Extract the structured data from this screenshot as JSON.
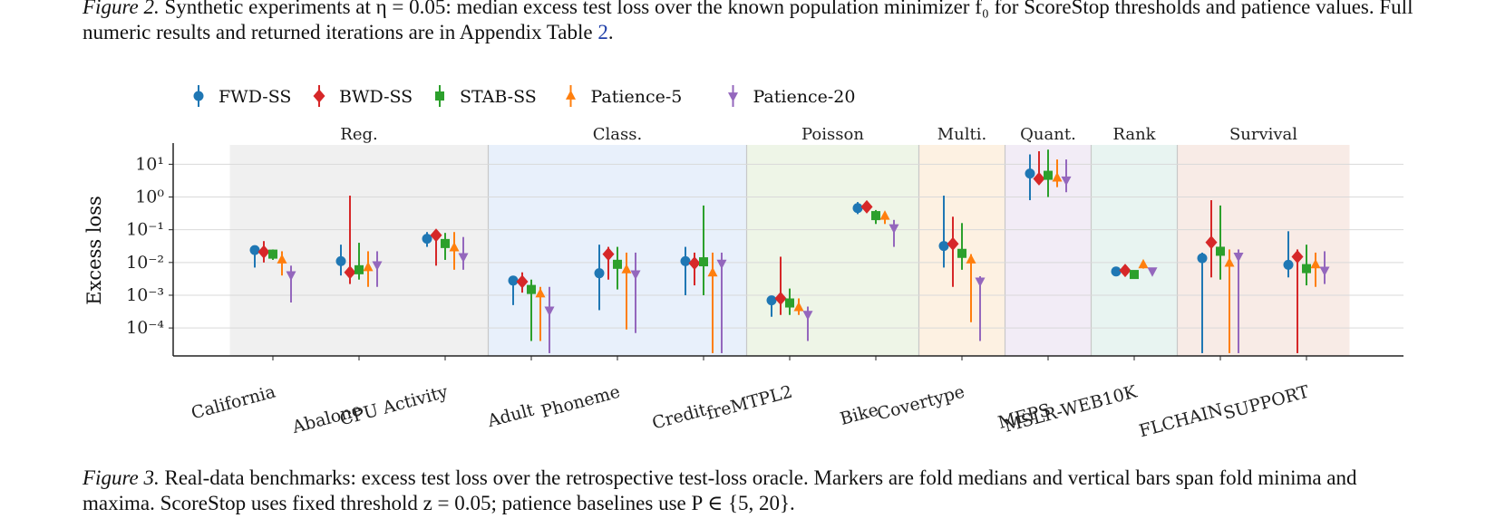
{
  "caption_top": {
    "label": "Figure 2.",
    "text": "Synthetic experiments at η = 0.05: median excess test loss over the known population minimizer f₀ for ScoreStop thresholds and patience values. Full numeric results and returned iterations are in Appendix Table",
    "ref": "2",
    "end": "."
  },
  "caption_bottom": {
    "label": "Figure 3.",
    "text": "Real-data benchmarks: excess test loss over the retrospective test-loss oracle. Markers are fold medians and vertical bars span fold minima and maxima. ScoreStop uses fixed threshold z = 0.05; patience baselines use P ∈ {5, 20}."
  },
  "chart_data": {
    "type": "scatter",
    "ylabel": "Excess loss",
    "yscale": "log",
    "ylim": [
      4e-05,
      40
    ],
    "yticks": [
      {
        "value": 10,
        "label": "10¹"
      },
      {
        "value": 1,
        "label": "10⁰"
      },
      {
        "value": 0.1,
        "label": "10⁻¹"
      },
      {
        "value": 0.01,
        "label": "10⁻²"
      },
      {
        "value": 0.001,
        "label": "10⁻³"
      },
      {
        "value": 0.0001,
        "label": "10⁻⁴"
      }
    ],
    "grid": true,
    "legend_position": "top",
    "groups": [
      {
        "name": "Reg.",
        "start": 0,
        "end": 2,
        "color": "#f0f0f0"
      },
      {
        "name": "Class.",
        "start": 3,
        "end": 5,
        "color": "#e8f0fb"
      },
      {
        "name": "Poisson",
        "start": 6,
        "end": 7,
        "color": "#eef5e7"
      },
      {
        "name": "Multi.",
        "start": 8,
        "end": 8,
        "color": "#fdf1e2"
      },
      {
        "name": "Quant.",
        "start": 9,
        "end": 9,
        "color": "#f2ecf6"
      },
      {
        "name": "Rank",
        "start": 10,
        "end": 10,
        "color": "#e8f4f1"
      },
      {
        "name": "Survival",
        "start": 11,
        "end": 12,
        "color": "#f8ebe6"
      }
    ],
    "categories": [
      "California",
      "Abalone",
      "CPU Activity",
      "Adult",
      "Phoneme",
      "Credit",
      "freMTPL2",
      "Bike",
      "Covertype",
      "MEPS",
      "MSLR-WEB10K",
      "FLCHAIN",
      "SUPPORT"
    ],
    "series": [
      {
        "name": "FWD-SS",
        "color": "#1f77b4",
        "marker": "circle",
        "median": [
          0.024,
          0.011,
          0.053,
          0.0028,
          0.0047,
          0.011,
          0.0007,
          0.46,
          0.032,
          5.2,
          0.0053,
          0.0135,
          0.0085
        ],
        "min": [
          0.007,
          0.004,
          0.03,
          0.0005,
          0.00035,
          0.001,
          0.00022,
          0.3,
          0.007,
          0.8,
          0.0045,
          1.7e-05,
          0.0035
        ],
        "max": [
          0.032,
          0.035,
          0.085,
          0.0035,
          0.035,
          0.03,
          0.0009,
          0.7,
          1.1,
          20,
          0.006,
          0.02,
          0.09
        ]
      },
      {
        "name": "BWD-SS",
        "color": "#d62728",
        "marker": "diamond",
        "median": [
          0.021,
          0.005,
          0.068,
          0.0026,
          0.018,
          0.0095,
          0.0008,
          0.5,
          0.037,
          3.6,
          0.0057,
          0.041,
          0.015
        ],
        "min": [
          0.01,
          0.0022,
          0.008,
          0.0012,
          0.003,
          0.002,
          0.00025,
          0.35,
          0.0018,
          2.5,
          0.0048,
          0.0035,
          1.7e-05
        ],
        "max": [
          0.045,
          1.1,
          0.1,
          0.005,
          0.03,
          0.02,
          0.015,
          0.6,
          0.25,
          25,
          0.0065,
          0.8,
          0.025
        ]
      },
      {
        "name": "STAB-SS",
        "color": "#2ca02c",
        "marker": "square",
        "median": [
          0.018,
          0.006,
          0.038,
          0.0015,
          0.0088,
          0.0105,
          0.00058,
          0.27,
          0.019,
          4.6,
          0.0043,
          0.022,
          0.0065
        ],
        "min": [
          0.012,
          0.003,
          0.012,
          4e-05,
          0.0015,
          0.001,
          0.00025,
          0.15,
          0.006,
          1.0,
          0.0038,
          0.003,
          0.002
        ],
        "max": [
          0.025,
          0.04,
          0.08,
          0.003,
          0.03,
          0.55,
          0.0016,
          0.4,
          0.16,
          28,
          0.005,
          0.55,
          0.035
        ]
      },
      {
        "name": "Patience-5",
        "color": "#ff7f0e",
        "marker": "triangle-up",
        "median": [
          0.012,
          0.007,
          0.028,
          0.0011,
          0.006,
          0.0048,
          0.00042,
          0.26,
          0.012,
          3.8,
          0.0085,
          0.0095,
          0.0085
        ],
        "min": [
          0.004,
          0.0018,
          0.006,
          4e-05,
          9e-05,
          1.7e-05,
          0.00025,
          0.15,
          0.00015,
          2.0,
          0.0065,
          1.7e-05,
          0.0018
        ],
        "max": [
          0.022,
          0.022,
          0.085,
          0.0018,
          0.02,
          0.02,
          0.0008,
          0.35,
          0.018,
          14,
          0.01,
          0.025,
          0.02
        ]
      },
      {
        "name": "Patience-20",
        "color": "#9467bd",
        "marker": "triangle-down",
        "median": [
          0.0042,
          0.0085,
          0.015,
          0.00035,
          0.0045,
          0.0095,
          0.00026,
          0.115,
          0.0027,
          3.3,
          0.0055,
          0.0155,
          0.0058
        ],
        "min": [
          0.0006,
          0.0018,
          0.006,
          1.7e-05,
          7e-05,
          1.7e-05,
          4e-05,
          0.03,
          4e-05,
          1.4,
          0.0048,
          1.7e-05,
          0.0022
        ],
        "max": [
          0.008,
          0.022,
          0.06,
          0.0018,
          0.02,
          0.02,
          0.00045,
          0.2,
          0.0038,
          14,
          0.0065,
          0.025,
          0.022
        ]
      }
    ]
  }
}
